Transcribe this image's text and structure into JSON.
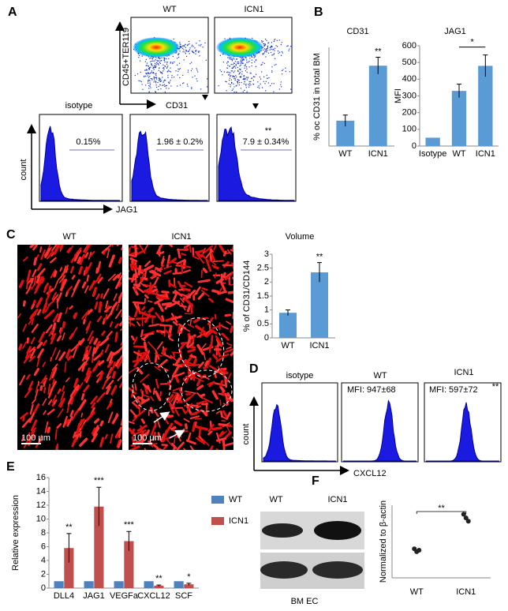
{
  "panels": {
    "labels": [
      "A",
      "B",
      "C",
      "D",
      "E",
      "F"
    ]
  },
  "panel_a": {
    "dot_plot_titles": [
      "WT",
      "ICN1"
    ],
    "dot_plot_y": "CD45+TER119",
    "dot_plot_x": "CD31",
    "histogram_title": "isotype",
    "histogram_y": "count",
    "histogram_x": "JAG1",
    "percentages": [
      "0.15%",
      "1.96 ± 0.2%",
      "7.9 ± 0.34%"
    ],
    "significance": "**"
  },
  "panel_c": {
    "titles": [
      "WT",
      "ICN1"
    ],
    "scale_bars": [
      "100 μm",
      "100 μm"
    ]
  },
  "panel_d": {
    "titles": [
      "isotype",
      "WT",
      "ICN1"
    ],
    "mfi": [
      "MFI: 947±68",
      "MFI: 597±72"
    ],
    "significance": "**",
    "y_axis": "count",
    "x_axis": "CXCL12"
  },
  "panel_f": {
    "lanes": [
      "WT",
      "ICN1"
    ],
    "caption": "BM EC"
  },
  "chart_data": [
    {
      "type": "bar",
      "title": "CD31",
      "y_label": "% oc CD31 in total BM",
      "categories": [
        "WT",
        "ICN1"
      ],
      "values": [
        0.9,
        2.85
      ],
      "errors": [
        0.2,
        0.3
      ],
      "color": "#5b9bd5",
      "ylim": [
        0,
        3.5
      ],
      "annotation": "**"
    },
    {
      "type": "bar",
      "title": "JAG1",
      "y_label": "MFI",
      "categories": [
        "Isotype",
        "WT",
        "ICN1"
      ],
      "values": [
        50,
        330,
        480
      ],
      "errors": [
        0,
        40,
        65
      ],
      "color": "#5b9bd5",
      "ylim": [
        0,
        600
      ],
      "yticks": [
        0,
        100,
        200,
        300,
        400,
        500,
        600
      ],
      "annotation": "*"
    },
    {
      "type": "bar",
      "title": "Volume",
      "y_label": "% of CD31/CD144",
      "categories": [
        "WT",
        "ICN1"
      ],
      "values": [
        0.9,
        2.35
      ],
      "errors": [
        0.1,
        0.35
      ],
      "color": "#5b9bd5",
      "ylim": [
        0,
        3
      ],
      "yticks": [
        0,
        0.5,
        1,
        1.5,
        2,
        2.5,
        3
      ],
      "annotation": "**"
    },
    {
      "type": "grouped_bar",
      "y_label": "Relative expression",
      "categories": [
        "DLL4",
        "JAG1",
        "VEGFa",
        "CXCL12",
        "SCF"
      ],
      "series": [
        {
          "name": "WT",
          "color": "#4f81bd",
          "values": [
            1,
            1,
            1,
            1,
            1
          ]
        },
        {
          "name": "ICN1",
          "color": "#c0504d",
          "values": [
            5.8,
            11.8,
            6.8,
            0.35,
            0.55
          ],
          "errors": [
            2.1,
            2.8,
            1.4,
            0.1,
            0.15
          ]
        }
      ],
      "ylim": [
        0,
        16
      ],
      "yticks": [
        0,
        2,
        4,
        6,
        8,
        10,
        12,
        14,
        16
      ],
      "annotations": [
        "**",
        "***",
        "***",
        "**",
        "*"
      ]
    },
    {
      "type": "scatter",
      "y_label": "Normalized to β-actin",
      "categories": [
        "WT",
        "ICN1"
      ],
      "values": [
        [
          0.8,
          0.72,
          0.76
        ],
        [
          1.75,
          1.65,
          1.56
        ]
      ],
      "ylim": [
        0,
        2
      ],
      "annotation": "**"
    }
  ]
}
